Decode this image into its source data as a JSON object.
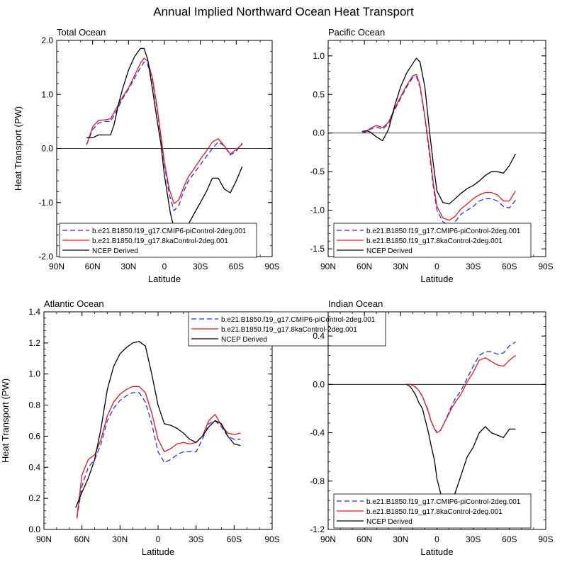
{
  "figure": {
    "title": "Annual Implied Northward Ocean Heat Transport"
  },
  "colors": {
    "series1": "#2a2aff",
    "series2": "#e8161c",
    "series3": "#000000"
  },
  "chart_data": [
    {
      "type": "line",
      "title": "Total Ocean",
      "xlabel": "Latitude",
      "ylabel": "Heat Transport (PW)",
      "xlim": [
        90,
        -90
      ],
      "ylim": [
        -2.0,
        2.0
      ],
      "yticks": [
        -2.0,
        -1.0,
        0.0,
        1.0,
        2.0
      ],
      "ytick_labels": [
        "-2.0",
        "-1.0",
        "0.0",
        "1.0",
        "2.0"
      ],
      "xticks": [
        90,
        60,
        30,
        0,
        -30,
        -60,
        -90
      ],
      "xtick_labels": [
        "90N",
        "60N",
        "30N",
        "0",
        "30S",
        "60S",
        "90S"
      ],
      "zero_line": true,
      "legend_position": "bottom-left",
      "series": [
        {
          "name": "b.e21.B1850.f19_g17.CMIP6-piControl-2deg.001",
          "style": "dashed",
          "x": [
            65,
            60,
            55,
            50,
            45,
            40,
            35,
            30,
            25,
            20,
            17,
            14,
            10,
            6,
            3,
            0,
            -4,
            -8,
            -12,
            -16,
            -20,
            -25,
            -30,
            -35,
            -40,
            -45,
            -50,
            -55,
            -60,
            -65
          ],
          "y": [
            0.07,
            0.35,
            0.47,
            0.5,
            0.5,
            0.7,
            0.92,
            1.1,
            1.3,
            1.5,
            1.6,
            1.55,
            1.25,
            0.7,
            0.2,
            -0.3,
            -0.85,
            -1.15,
            -1.05,
            -0.8,
            -0.6,
            -0.45,
            -0.3,
            -0.15,
            0.0,
            0.12,
            0.05,
            -0.12,
            -0.05,
            0.1
          ]
        },
        {
          "name": "b.e21.B1850.f19_g17.8kaControl-2deg.001",
          "style": "solid",
          "x": [
            65,
            60,
            55,
            50,
            45,
            40,
            35,
            30,
            25,
            20,
            17,
            14,
            10,
            6,
            3,
            0,
            -4,
            -8,
            -12,
            -16,
            -20,
            -25,
            -30,
            -35,
            -40,
            -45,
            -50,
            -55,
            -60,
            -65
          ],
          "y": [
            0.07,
            0.4,
            0.52,
            0.53,
            0.55,
            0.75,
            0.95,
            1.12,
            1.35,
            1.58,
            1.67,
            1.62,
            1.3,
            0.75,
            0.25,
            -0.25,
            -0.75,
            -1.02,
            -0.95,
            -0.72,
            -0.52,
            -0.37,
            -0.2,
            -0.05,
            0.12,
            0.18,
            0.05,
            -0.1,
            -0.02,
            0.08
          ]
        },
        {
          "name": "NCEP Derived",
          "style": "solid",
          "x": [
            65,
            60,
            55,
            50,
            45,
            42,
            38,
            35,
            30,
            25,
            20,
            17,
            14,
            10,
            6,
            3,
            0,
            -5,
            -10,
            -15,
            -20,
            -25,
            -30,
            -35,
            -40,
            -45,
            -50,
            -55,
            -60,
            -65
          ],
          "y": [
            0.2,
            0.2,
            0.25,
            0.25,
            0.25,
            0.45,
            0.85,
            1.1,
            1.45,
            1.7,
            1.85,
            1.85,
            1.65,
            1.1,
            0.5,
            0.1,
            -0.5,
            -1.2,
            -1.65,
            -1.6,
            -1.4,
            -1.2,
            -1.0,
            -0.8,
            -0.55,
            -0.55,
            -0.75,
            -0.82,
            -0.6,
            -0.33
          ]
        }
      ]
    },
    {
      "type": "line",
      "title": "Pacific Ocean",
      "xlabel": "Latitude",
      "ylabel": "",
      "xlim": [
        90,
        -90
      ],
      "ylim": [
        -1.6,
        1.2
      ],
      "yticks": [
        -1.5,
        -1.0,
        -0.5,
        0.0,
        0.5,
        1.0
      ],
      "ytick_labels": [
        "-1.5",
        "-1.0",
        "-0.5",
        "0.0",
        "0.5",
        "1.0"
      ],
      "xticks": [
        90,
        60,
        30,
        0,
        -30,
        -60,
        -90
      ],
      "xtick_labels": [
        "90N",
        "60N",
        "30N",
        "0",
        "30S",
        "60S",
        "90S"
      ],
      "zero_line": true,
      "legend_position": "bottom-left",
      "series": [
        {
          "name": "b.e21.B1850.f19_g17.CMIP6-piControl-2deg.001",
          "style": "dashed",
          "x": [
            62,
            58,
            55,
            50,
            45,
            40,
            35,
            30,
            25,
            20,
            17,
            14,
            10,
            6,
            3,
            0,
            -5,
            -10,
            -15,
            -20,
            -25,
            -30,
            -35,
            -40,
            -45,
            -50,
            -55,
            -60,
            -65
          ],
          "y": [
            0.0,
            0.02,
            0.05,
            0.08,
            0.05,
            0.12,
            0.3,
            0.45,
            0.6,
            0.72,
            0.73,
            0.6,
            0.2,
            -0.3,
            -0.7,
            -1.0,
            -1.15,
            -1.2,
            -1.15,
            -1.05,
            -1.0,
            -0.95,
            -0.88,
            -0.85,
            -0.85,
            -0.88,
            -0.95,
            -0.97,
            -0.87
          ]
        },
        {
          "name": "b.e21.B1850.f19_g17.8kaControl-2deg.001",
          "style": "solid",
          "x": [
            62,
            58,
            55,
            50,
            45,
            40,
            35,
            30,
            25,
            20,
            17,
            14,
            10,
            6,
            3,
            0,
            -5,
            -10,
            -15,
            -20,
            -25,
            -30,
            -35,
            -40,
            -45,
            -50,
            -55,
            -60,
            -65
          ],
          "y": [
            0.0,
            0.03,
            0.06,
            0.1,
            0.07,
            0.14,
            0.32,
            0.47,
            0.62,
            0.74,
            0.76,
            0.62,
            0.22,
            -0.25,
            -0.65,
            -0.95,
            -1.1,
            -1.13,
            -1.08,
            -0.98,
            -0.92,
            -0.85,
            -0.8,
            -0.77,
            -0.77,
            -0.8,
            -0.88,
            -0.88,
            -0.75
          ]
        },
        {
          "name": "NCEP Derived",
          "style": "solid",
          "x": [
            62,
            58,
            55,
            50,
            45,
            40,
            35,
            30,
            25,
            20,
            17,
            14,
            10,
            6,
            3,
            0,
            -5,
            -10,
            -15,
            -20,
            -25,
            -30,
            -35,
            -40,
            -45,
            -50,
            -55,
            -60,
            -65
          ],
          "y": [
            0.02,
            0.03,
            0.01,
            -0.05,
            -0.1,
            0.05,
            0.35,
            0.6,
            0.78,
            0.9,
            0.97,
            0.92,
            0.6,
            0.0,
            -0.4,
            -0.75,
            -0.9,
            -0.92,
            -0.85,
            -0.78,
            -0.72,
            -0.68,
            -0.62,
            -0.55,
            -0.5,
            -0.5,
            -0.52,
            -0.42,
            -0.27
          ]
        }
      ]
    },
    {
      "type": "line",
      "title": "Atlantic Ocean",
      "xlabel": "Latitude",
      "ylabel": "Heat Transport (PW)",
      "xlim": [
        90,
        -90
      ],
      "ylim": [
        0.0,
        1.4
      ],
      "yticks": [
        0.0,
        0.2,
        0.4,
        0.6,
        0.8,
        1.0,
        1.2,
        1.4
      ],
      "ytick_labels": [
        "0.0",
        "0.2",
        "0.4",
        "0.6",
        "0.8",
        "1.0",
        "1.2",
        "1.4"
      ],
      "xticks": [
        90,
        60,
        30,
        0,
        -30,
        -60,
        -90
      ],
      "xtick_labels": [
        "90N",
        "60N",
        "30N",
        "0",
        "30S",
        "60S",
        "90S"
      ],
      "zero_line": false,
      "legend_position": "top-right",
      "series": [
        {
          "name": "b.e21.B1850.f19_g17.CMIP6-piControl-2deg.001",
          "style": "dashed",
          "x": [
            64,
            60,
            55,
            50,
            45,
            40,
            35,
            30,
            25,
            20,
            15,
            10,
            5,
            0,
            -5,
            -10,
            -15,
            -20,
            -25,
            -30,
            -35,
            -40,
            -45,
            -50,
            -55,
            -60,
            -65
          ],
          "y": [
            0.07,
            0.28,
            0.4,
            0.45,
            0.55,
            0.7,
            0.78,
            0.83,
            0.86,
            0.88,
            0.88,
            0.82,
            0.68,
            0.5,
            0.43,
            0.45,
            0.48,
            0.5,
            0.5,
            0.5,
            0.58,
            0.68,
            0.7,
            0.66,
            0.6,
            0.58,
            0.58
          ]
        },
        {
          "name": "b.e21.B1850.f19_g17.8kaControl-2deg.001",
          "style": "solid",
          "x": [
            64,
            60,
            55,
            50,
            45,
            40,
            35,
            30,
            25,
            20,
            15,
            10,
            5,
            0,
            -5,
            -10,
            -15,
            -20,
            -25,
            -30,
            -35,
            -40,
            -45,
            -50,
            -55,
            -60,
            -65
          ],
          "y": [
            0.08,
            0.35,
            0.45,
            0.48,
            0.58,
            0.73,
            0.82,
            0.87,
            0.9,
            0.92,
            0.92,
            0.88,
            0.75,
            0.58,
            0.5,
            0.52,
            0.55,
            0.56,
            0.55,
            0.56,
            0.6,
            0.7,
            0.74,
            0.67,
            0.62,
            0.61,
            0.62
          ]
        },
        {
          "name": "NCEP Derived",
          "style": "solid",
          "x": [
            65,
            60,
            55,
            50,
            45,
            40,
            35,
            30,
            25,
            20,
            15,
            10,
            5,
            0,
            -5,
            -10,
            -15,
            -20,
            -25,
            -30,
            -35,
            -40,
            -45,
            -50,
            -55,
            -60,
            -65
          ],
          "y": [
            0.14,
            0.24,
            0.33,
            0.45,
            0.65,
            0.9,
            1.05,
            1.13,
            1.17,
            1.2,
            1.21,
            1.18,
            1.0,
            0.8,
            0.68,
            0.67,
            0.65,
            0.62,
            0.58,
            0.56,
            0.6,
            0.66,
            0.7,
            0.68,
            0.6,
            0.55,
            0.54
          ]
        }
      ]
    },
    {
      "type": "line",
      "title": "Indian Ocean",
      "xlabel": "Latitude",
      "ylabel": "",
      "xlim": [
        90,
        -90
      ],
      "ylim": [
        -1.2,
        0.6
      ],
      "yticks": [
        -1.2,
        -0.8,
        -0.4,
        0.0,
        0.4
      ],
      "ytick_labels": [
        "-1.2",
        "-0.8",
        "-0.4",
        "0.0",
        "0.4"
      ],
      "xticks": [
        90,
        60,
        30,
        0,
        -30,
        -60,
        -90
      ],
      "xtick_labels": [
        "90N",
        "60N",
        "30N",
        "0",
        "30S",
        "60S",
        "90S"
      ],
      "zero_line": true,
      "legend_position": "bottom-left",
      "series": [
        {
          "name": "b.e21.B1850.f19_g17.CMIP6-piControl-2deg.001",
          "style": "dashed",
          "x": [
            25,
            22,
            18,
            15,
            12,
            10,
            7,
            5,
            2,
            0,
            -3,
            -6,
            -9,
            -12,
            -15,
            -20,
            -25,
            -30,
            -35,
            -40,
            -45,
            -50,
            -55,
            -60,
            -65
          ],
          "y": [
            0.0,
            0.0,
            -0.02,
            -0.05,
            -0.1,
            -0.15,
            -0.22,
            -0.3,
            -0.37,
            -0.39,
            -0.38,
            -0.32,
            -0.25,
            -0.18,
            -0.12,
            -0.05,
            0.05,
            0.15,
            0.24,
            0.27,
            0.27,
            0.25,
            0.26,
            0.32,
            0.35
          ]
        },
        {
          "name": "b.e21.B1850.f19_g17.8kaControl-2deg.001",
          "style": "solid",
          "x": [
            25,
            22,
            18,
            15,
            12,
            10,
            7,
            5,
            2,
            0,
            -3,
            -6,
            -9,
            -12,
            -15,
            -20,
            -25,
            -30,
            -35,
            -40,
            -45,
            -50,
            -55,
            -60,
            -65
          ],
          "y": [
            0.0,
            0.0,
            -0.02,
            -0.05,
            -0.1,
            -0.15,
            -0.23,
            -0.3,
            -0.37,
            -0.4,
            -0.38,
            -0.32,
            -0.26,
            -0.2,
            -0.15,
            -0.08,
            0.02,
            0.1,
            0.2,
            0.22,
            0.19,
            0.16,
            0.15,
            0.2,
            0.24
          ]
        },
        {
          "name": "NCEP Derived",
          "style": "solid",
          "x": [
            25,
            22,
            18,
            15,
            12,
            10,
            7,
            5,
            2,
            0,
            -3,
            -6,
            -9,
            -12,
            -15,
            -20,
            -25,
            -30,
            -35,
            -40,
            -45,
            -50,
            -55,
            -60,
            -65
          ],
          "y": [
            0.0,
            -0.02,
            -0.08,
            -0.15,
            -0.2,
            -0.28,
            -0.4,
            -0.5,
            -0.63,
            -0.78,
            -0.9,
            -0.95,
            -0.98,
            -0.95,
            -0.9,
            -0.75,
            -0.6,
            -0.52,
            -0.4,
            -0.35,
            -0.4,
            -0.42,
            -0.44,
            -0.37,
            -0.37
          ]
        }
      ]
    }
  ]
}
